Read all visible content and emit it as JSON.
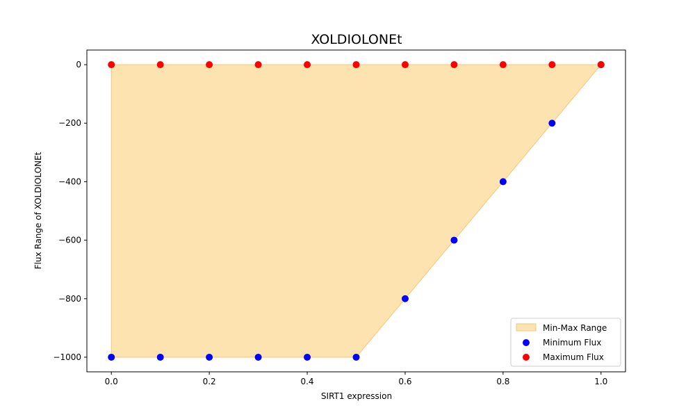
{
  "chart_data": {
    "type": "scatter",
    "title": "XOLDIOLONEt",
    "xlabel": "SIRT1 expression",
    "ylabel": "Flux Range of XOLDIOLONEt",
    "xlim": [
      -0.05,
      1.05
    ],
    "ylim": [
      -1050,
      50
    ],
    "x": [
      0.0,
      0.1,
      0.2,
      0.3,
      0.4,
      0.5,
      0.6,
      0.7,
      0.8,
      0.9,
      1.0
    ],
    "xticks": [
      0.0,
      0.2,
      0.4,
      0.6,
      0.8,
      1.0
    ],
    "xtick_labels": [
      "0.0",
      "0.2",
      "0.4",
      "0.6",
      "0.8",
      "1.0"
    ],
    "yticks": [
      0,
      -200,
      -400,
      -600,
      -800,
      -1000
    ],
    "ytick_labels": [
      "0",
      "−200",
      "−400",
      "−600",
      "−800",
      "−1000"
    ],
    "grid": false,
    "legend_position": "lower-right",
    "fill": {
      "name": "Min-Max Range",
      "color": "#fde3b0",
      "edge": "#f5c77a"
    },
    "series": [
      {
        "name": "Minimum Flux",
        "color": "#0000ff",
        "values": [
          -1000,
          -1000,
          -1000,
          -1000,
          -1000,
          -1000,
          -800,
          -600,
          -400,
          -200,
          0
        ]
      },
      {
        "name": "Maximum Flux",
        "color": "#ff0000",
        "values": [
          0,
          0,
          0,
          0,
          0,
          0,
          0,
          0,
          0,
          0,
          0
        ]
      }
    ]
  }
}
